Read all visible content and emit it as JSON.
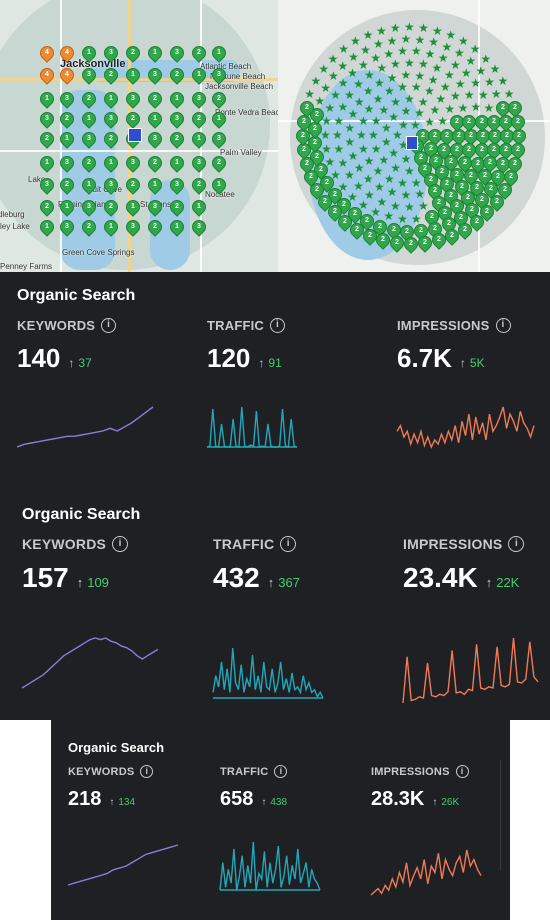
{
  "map_left": {
    "labels": [
      "Jacksonville",
      "Atlantic Beach",
      "Neptune Beach",
      "Jacksonville Beach",
      "Ponte Vedra Beach",
      "Palm Valley",
      "Nocatee",
      "Fruit Cove",
      "St Johns",
      "Fleming Island",
      "Green Cove Springs",
      "Middleburg",
      "Penney Farms",
      "Kingsley Lake",
      "Lake"
    ],
    "pin_values": {
      "orange": "4",
      "green": [
        "3",
        "2",
        "1"
      ]
    }
  },
  "panels": [
    {
      "title": "Organic Search",
      "metrics": [
        {
          "label": "KEYWORDS",
          "value": "140",
          "delta": "37",
          "spark_color": "#8f7ad6",
          "spark": [
            6,
            7,
            7.5,
            8,
            8.5,
            9,
            9.5,
            10,
            10,
            10.5,
            11,
            11.5,
            12,
            13,
            12,
            13.5,
            15,
            17,
            19,
            21
          ]
        },
        {
          "label": "TRAFFIC",
          "value": "120",
          "delta": "91",
          "spark_color": "#22a7b8",
          "spark": [
            2,
            3,
            40,
            3,
            2,
            25,
            3,
            2,
            2,
            30,
            3,
            2,
            42,
            3,
            2,
            4,
            3,
            38,
            2,
            3,
            2,
            25,
            3,
            2,
            2,
            3,
            40,
            3,
            2,
            30,
            3,
            2
          ]
        },
        {
          "label": "IMPRESSIONS",
          "value": "6.7K",
          "delta": "5K",
          "spark_color": "#f07a55",
          "spark": [
            18,
            22,
            14,
            18,
            9,
            16,
            10,
            18,
            8,
            14,
            7,
            12,
            9,
            16,
            10,
            18,
            12,
            22,
            10,
            25,
            15,
            30,
            12,
            28,
            16,
            24,
            12,
            30,
            18,
            22,
            28,
            35,
            20,
            30,
            25,
            18,
            32,
            24,
            20,
            14,
            22
          ]
        }
      ]
    },
    {
      "title": "Organic Search",
      "metrics": [
        {
          "label": "KEYWORDS",
          "value": "157",
          "delta": "109",
          "spark_color": "#8f7ad6",
          "spark": [
            2,
            4,
            6,
            8,
            10,
            13,
            16,
            19,
            22,
            24,
            26,
            28,
            30,
            32,
            33,
            32,
            33,
            31,
            30,
            28,
            27,
            25,
            22,
            20,
            22,
            24,
            26
          ]
        },
        {
          "label": "TRAFFIC",
          "value": "432",
          "delta": "367",
          "spark_color": "#22a7b8",
          "spark": [
            8,
            20,
            12,
            30,
            10,
            25,
            8,
            40,
            15,
            10,
            28,
            8,
            18,
            12,
            35,
            10,
            20,
            8,
            30,
            12,
            10,
            25,
            8,
            15,
            30,
            10,
            18,
            8,
            22,
            10,
            12,
            8,
            20,
            10,
            15,
            8,
            10,
            5,
            8,
            4
          ]
        },
        {
          "label": "IMPRESSIONS",
          "value": "23.4K",
          "delta": "22K",
          "spark_color": "#f07a55",
          "spark": [
            3,
            40,
            5,
            6,
            8,
            7,
            35,
            9,
            8,
            10,
            9,
            12,
            45,
            11,
            12,
            10,
            14,
            13,
            50,
            15,
            14,
            16,
            15,
            48,
            17,
            16,
            18,
            55,
            20,
            19,
            22,
            52,
            24,
            20
          ]
        }
      ]
    },
    {
      "title": "Organic Search",
      "metrics": [
        {
          "label": "KEYWORDS",
          "value": "218",
          "delta": "134",
          "spark_color": "#8f7ad6",
          "spark": [
            4,
            5,
            6,
            7,
            8,
            9,
            10,
            12,
            13,
            14,
            16,
            18,
            20,
            21,
            22,
            23,
            24,
            25
          ]
        },
        {
          "label": "TRAFFIC",
          "value": "658",
          "delta": "438",
          "spark_color": "#22a7b8",
          "spark": [
            10,
            30,
            12,
            25,
            15,
            40,
            10,
            20,
            35,
            12,
            28,
            15,
            45,
            10,
            22,
            18,
            38,
            12,
            30,
            15,
            25,
            42,
            12,
            20,
            35,
            14,
            28,
            18,
            40,
            15,
            22,
            30,
            12,
            25,
            18,
            15,
            10
          ]
        },
        {
          "label": "IMPRESSIONS",
          "value": "28.3K",
          "delta": "26K",
          "spark_color": "#f07a55",
          "spark": [
            8,
            10,
            12,
            9,
            14,
            11,
            18,
            13,
            22,
            16,
            28,
            14,
            20,
            25,
            18,
            30,
            15,
            26,
            22,
            34,
            18,
            30,
            24,
            20,
            28,
            32,
            22,
            36,
            26,
            30,
            24,
            20
          ]
        }
      ]
    }
  ]
}
